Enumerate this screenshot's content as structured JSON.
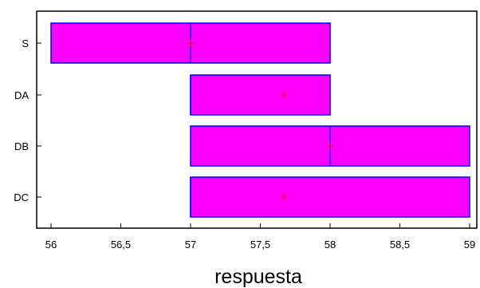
{
  "chart_data": {
    "type": "boxplot",
    "orientation": "horizontal",
    "title": "",
    "xlabel": "respuesta",
    "ylabel": "",
    "xlim": [
      55.94,
      59.0
    ],
    "x_ticks": [
      56,
      56.5,
      57,
      57.5,
      58,
      58.5,
      59
    ],
    "x_tick_labels": [
      "56",
      "56,5",
      "57",
      "57,5",
      "58",
      "58,5",
      "59"
    ],
    "grid": false,
    "legend": "none",
    "box_color": "#ff00ff",
    "box_edge_color": "#0000ff",
    "mean_marker_color": "#ff0000",
    "categories": [
      "S",
      "DA",
      "DB",
      "DC"
    ],
    "boxes": [
      {
        "category": "S",
        "q1": 56,
        "median": 57,
        "q3": 58,
        "mean": 57.0
      },
      {
        "category": "DA",
        "q1": 57,
        "median": 57,
        "q3": 58,
        "mean": 57.67
      },
      {
        "category": "DB",
        "q1": 57,
        "median": 58,
        "q3": 59,
        "mean": 58.0
      },
      {
        "category": "DC",
        "q1": 57,
        "median": 57,
        "q3": 59,
        "mean": 57.67
      }
    ]
  }
}
